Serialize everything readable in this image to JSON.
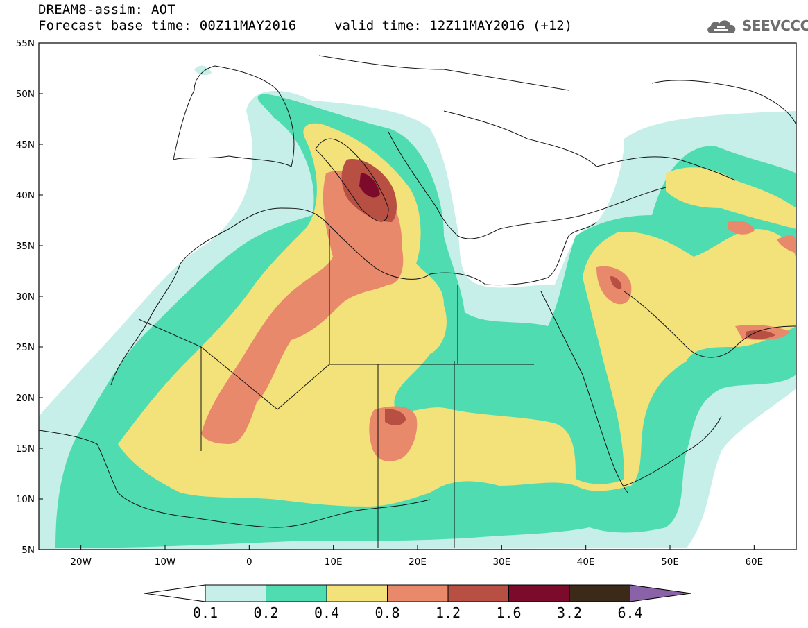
{
  "header": {
    "title_line1": "DREAM8-assim: AOT",
    "title_line2": "Forecast base time: 00Z11MAY2016",
    "valid_time": "valid time: 12Z11MAY2016 (+12)",
    "logo_text": "SEEVCCC"
  },
  "map": {
    "region": "North Africa, Europe and Middle East",
    "lon_range": [
      -25,
      65
    ],
    "lat_range": [
      5,
      55
    ],
    "lon_ticks": [
      "20W",
      "10W",
      "0",
      "10E",
      "20E",
      "30E",
      "40E",
      "50E",
      "60E"
    ],
    "lat_ticks": [
      "55N",
      "50N",
      "45N",
      "40N",
      "35N",
      "30N",
      "25N",
      "20N",
      "15N",
      "10N",
      "5N"
    ]
  },
  "colorbar": {
    "labels": [
      "0.1",
      "0.2",
      "0.4",
      "0.8",
      "1.2",
      "1.6",
      "3.2",
      "6.4"
    ],
    "colors": [
      "#ffffff",
      "#c6efe9",
      "#4fdcb1",
      "#f3e27a",
      "#e8896b",
      "#b84f43",
      "#7c0a2a",
      "#3c2a19",
      "#8a62a8"
    ]
  }
}
